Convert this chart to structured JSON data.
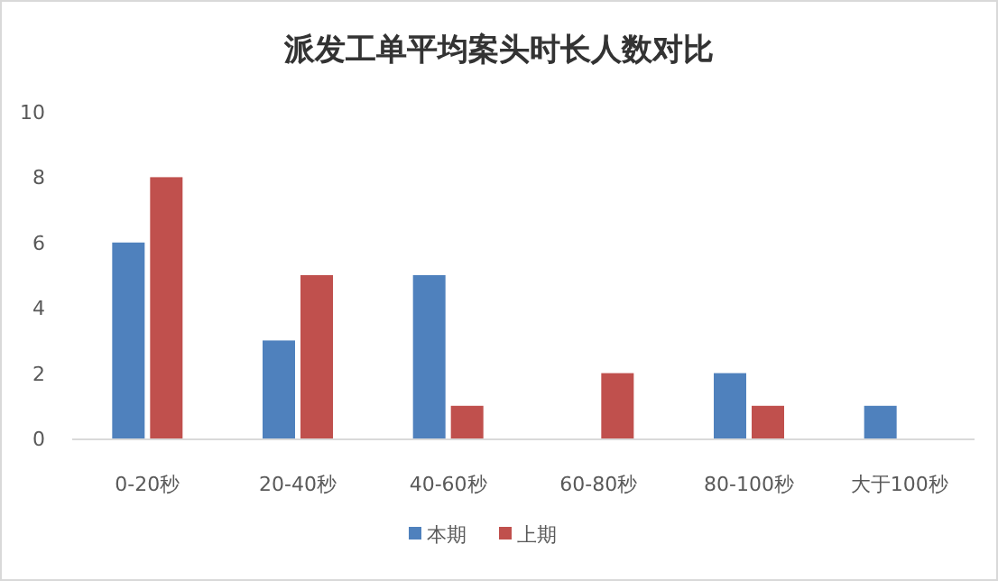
{
  "chart_data": {
    "type": "bar",
    "title": "派发工单平均案头时长人数对比",
    "categories": [
      "0-20秒",
      "20-40秒",
      "40-60秒",
      "60-80秒",
      "80-100秒",
      "大于100秒"
    ],
    "series": [
      {
        "name": "本期",
        "color": "#4f81bd",
        "values": [
          6,
          3,
          5,
          null,
          2,
          1
        ]
      },
      {
        "name": "上期",
        "color": "#c0504d",
        "values": [
          8,
          5,
          1,
          2,
          1,
          null
        ]
      }
    ],
    "ylim": [
      0,
      10
    ],
    "yticks": [
      0,
      2,
      4,
      6,
      8,
      10
    ],
    "grid": false,
    "legend": "bottom"
  }
}
